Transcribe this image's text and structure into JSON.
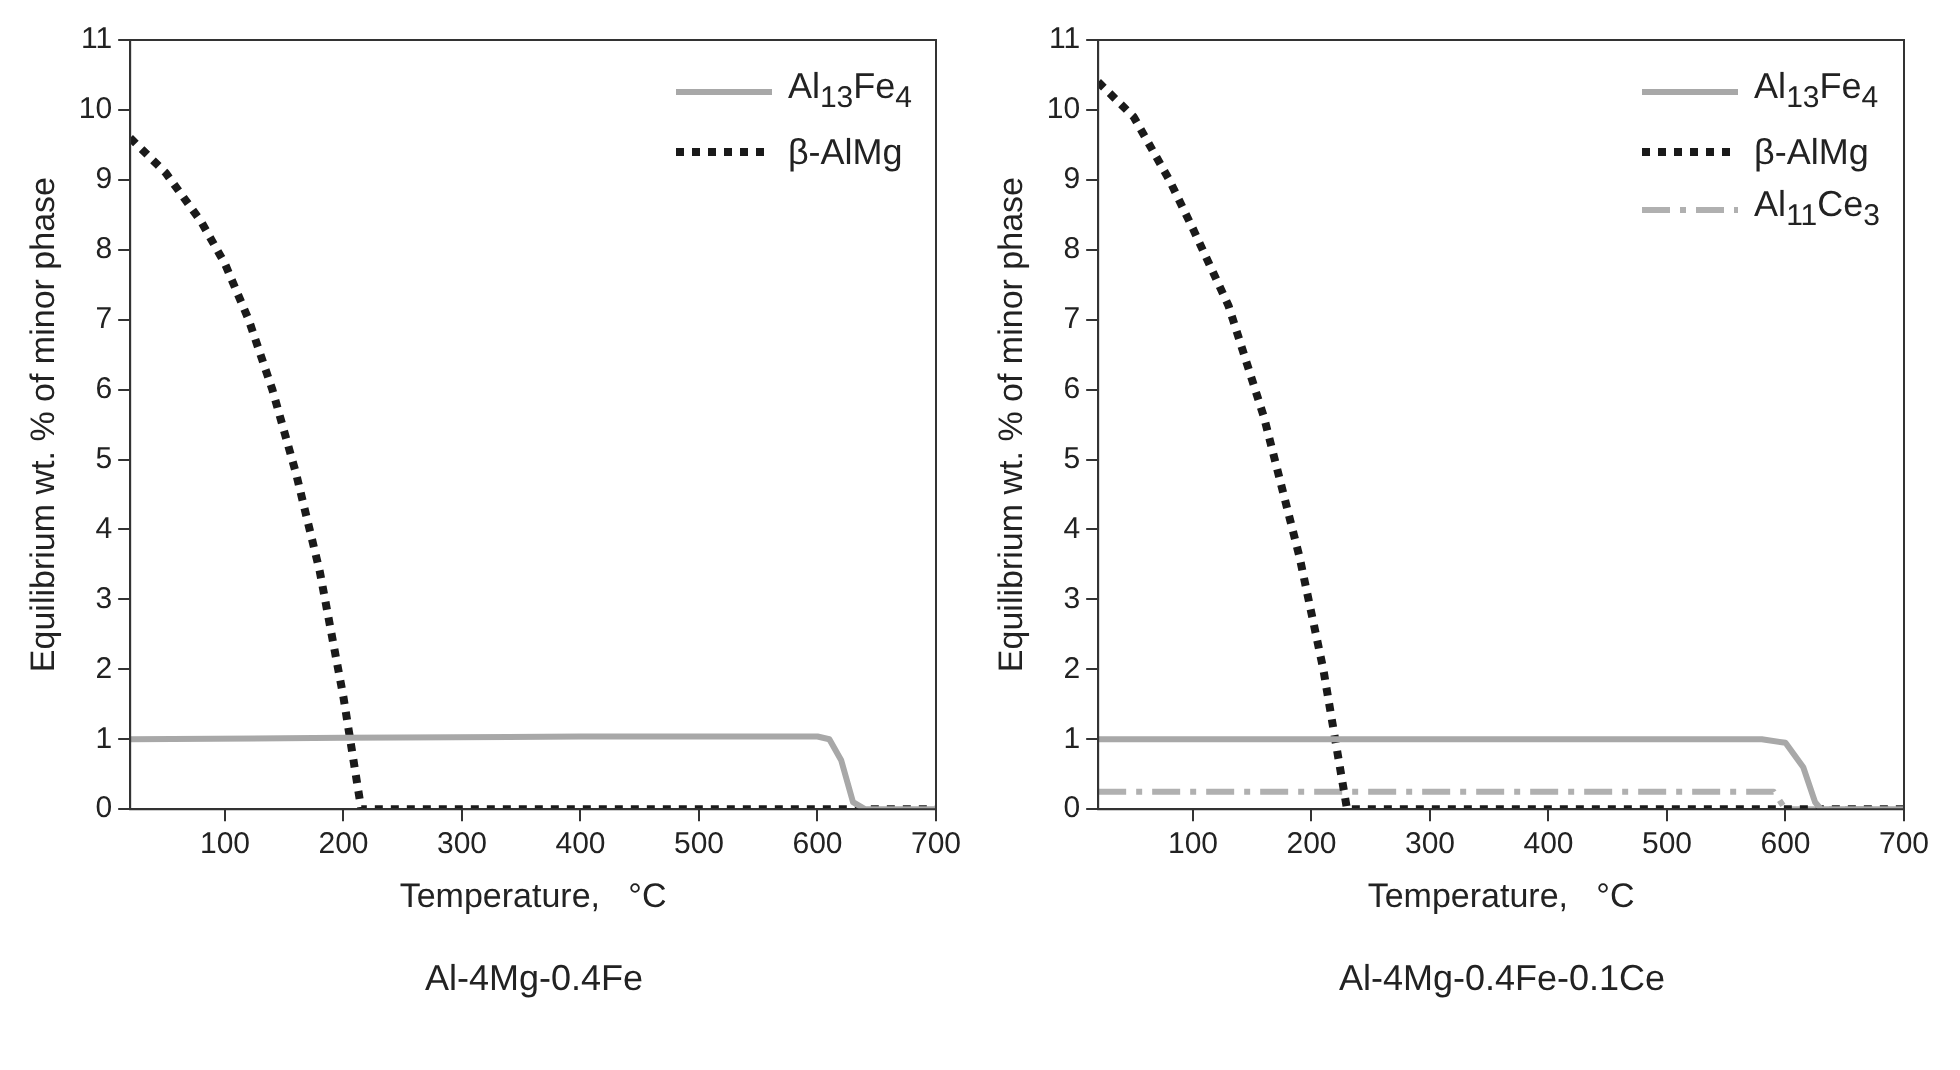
{
  "chart_data": [
    {
      "type": "line",
      "title": "Al-4Mg-0.4Fe",
      "xlabel": "Temperature,   °C",
      "ylabel": "Equilibrium wt. % of minor phase",
      "xlim": [
        20,
        700
      ],
      "xticks": [
        100,
        200,
        300,
        400,
        500,
        600,
        700
      ],
      "ylim": [
        0,
        11
      ],
      "yticks": [
        0,
        1,
        2,
        3,
        4,
        5,
        6,
        7,
        8,
        9,
        10,
        11
      ],
      "grid": false,
      "legend": "top right",
      "marker": "none",
      "series": [
        {
          "name": "Al$_{13}$Fe$_{4}$",
          "color": "#a8a8a8",
          "line_style": "solid",
          "x": [
            20,
            200,
            400,
            600,
            610,
            620,
            630,
            640,
            700
          ],
          "values": [
            1.0,
            1.02,
            1.04,
            1.04,
            1.0,
            0.7,
            0.1,
            0.0,
            0.0
          ]
        },
        {
          "name": "β-AlMg",
          "color": "#1a1a1a",
          "line_style": "dotted",
          "x": [
            20,
            50,
            80,
            100,
            120,
            140,
            160,
            180,
            200,
            215,
            300,
            400,
            500,
            600,
            700
          ],
          "values": [
            9.6,
            9.1,
            8.4,
            7.8,
            7.0,
            6.0,
            4.8,
            3.4,
            1.6,
            0.0,
            0.0,
            0.0,
            0.0,
            0.0,
            0.0
          ]
        }
      ]
    },
    {
      "type": "line",
      "title": "Al-4Mg-0.4Fe-0.1Ce",
      "xlabel": "Temperature,   °C",
      "ylabel": "Equilibrium wt. % of minor phase",
      "xlim": [
        20,
        700
      ],
      "xticks": [
        100,
        200,
        300,
        400,
        500,
        600,
        700
      ],
      "ylim": [
        0,
        11
      ],
      "yticks": [
        0,
        1,
        2,
        3,
        4,
        5,
        6,
        7,
        8,
        9,
        10,
        11
      ],
      "grid": false,
      "legend": "top right",
      "marker": "none",
      "series": [
        {
          "name": "Al$_{13}$Fe$_{4}$",
          "color": "#a8a8a8",
          "line_style": "solid",
          "x": [
            20,
            200,
            400,
            580,
            600,
            615,
            625,
            630,
            700
          ],
          "values": [
            1.0,
            1.0,
            1.0,
            1.0,
            0.95,
            0.6,
            0.1,
            0.0,
            0.0
          ]
        },
        {
          "name": "β-AlMg",
          "color": "#1a1a1a",
          "line_style": "dotted",
          "x": [
            20,
            50,
            80,
            100,
            130,
            160,
            190,
            210,
            225,
            230,
            300,
            400,
            500,
            600,
            700
          ],
          "values": [
            10.4,
            9.9,
            9.0,
            8.3,
            7.2,
            5.6,
            3.6,
            2.0,
            0.5,
            0.0,
            0.0,
            0.0,
            0.0,
            0.0,
            0.0
          ]
        },
        {
          "name": "Al$_{11}$Ce$_{3}$",
          "color": "#b0b0b0",
          "line_style": "dashdot",
          "x": [
            20,
            200,
            400,
            590,
            600,
            700
          ],
          "values": [
            0.25,
            0.25,
            0.25,
            0.25,
            0.0,
            0.0
          ]
        }
      ]
    }
  ]
}
